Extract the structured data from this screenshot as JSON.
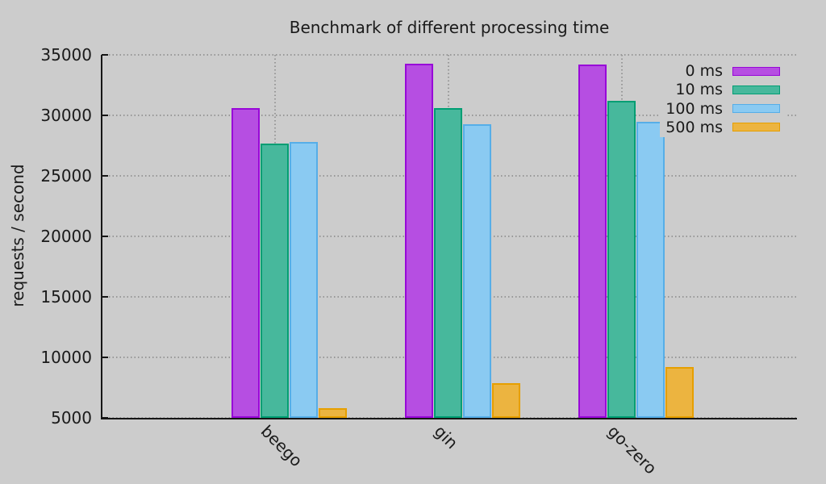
{
  "chart_data": {
    "type": "bar",
    "title": "Benchmark of different processing time",
    "xlabel": "",
    "ylabel": "requests / second",
    "categories": [
      "beego",
      "gin",
      "go-zero"
    ],
    "series": [
      {
        "name": "0 ms",
        "color": "#b64ee2",
        "border": "#9807d8",
        "values": [
          30600,
          34300,
          34200
        ]
      },
      {
        "name": "10 ms",
        "color": "#47b89c",
        "border": "#009e73",
        "values": [
          27700,
          30600,
          31200
        ]
      },
      {
        "name": "100 ms",
        "color": "#8acaf2",
        "border": "#56aee8",
        "values": [
          27800,
          29300,
          29500
        ]
      },
      {
        "name": "500 ms",
        "color": "#ecb440",
        "border": "#e69f00",
        "values": [
          5800,
          7900,
          9200
        ]
      }
    ],
    "ylim": [
      5000,
      35000
    ],
    "yticks": [
      5000,
      10000,
      15000,
      20000,
      25000,
      30000,
      35000
    ],
    "grid": true,
    "legend_position": "top-right"
  },
  "colors": {
    "background": "#cccccc",
    "text": "#1a1a1a",
    "grid": "#979797",
    "axis": "#161616"
  }
}
